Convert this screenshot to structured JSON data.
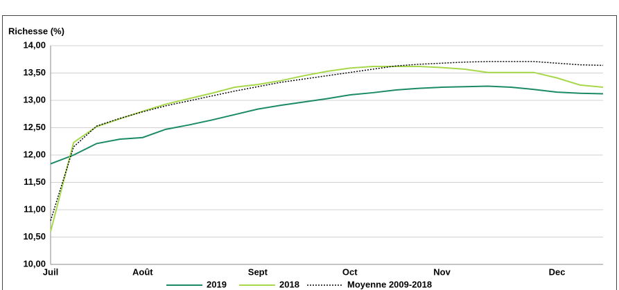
{
  "chart_data": {
    "type": "line",
    "y_label": "Richesse (%)",
    "categories": [
      "Juil",
      null,
      null,
      null,
      "Août",
      null,
      null,
      null,
      null,
      "Sept",
      null,
      null,
      null,
      "Oct",
      null,
      null,
      null,
      "Nov",
      null,
      null,
      null,
      null,
      "Dec",
      null,
      null
    ],
    "ylim": [
      10,
      14
    ],
    "yticks": [
      {
        "value": 10,
        "label": "10,00"
      },
      {
        "value": 10.5,
        "label": "10,50"
      },
      {
        "value": 11,
        "label": "11,00"
      },
      {
        "value": 11.5,
        "label": "11,50"
      },
      {
        "value": 12,
        "label": "12,00"
      },
      {
        "value": 12.5,
        "label": "12,50"
      },
      {
        "value": 13,
        "label": "13,00"
      },
      {
        "value": 13.5,
        "label": "13,50"
      },
      {
        "value": 14,
        "label": "14,00"
      }
    ],
    "grid": true,
    "series": [
      {
        "name": "2019",
        "color": "#1a8a64",
        "dash": "solid",
        "values": [
          11.84,
          12.0,
          12.21,
          12.29,
          12.32,
          12.47,
          12.55,
          12.64,
          12.74,
          12.84,
          12.91,
          12.97,
          13.03,
          13.1,
          13.14,
          13.19,
          13.22,
          13.24,
          13.25,
          13.26,
          13.24,
          13.2,
          13.15,
          13.13,
          13.12
        ]
      },
      {
        "name": "2018",
        "color": "#a6d84a",
        "dash": "solid",
        "values": [
          10.6,
          12.23,
          12.52,
          12.66,
          12.8,
          12.93,
          13.03,
          13.13,
          13.24,
          13.29,
          13.36,
          13.45,
          13.53,
          13.59,
          13.62,
          13.62,
          13.62,
          13.6,
          13.57,
          13.51,
          13.51,
          13.51,
          13.41,
          13.28,
          13.24
        ]
      },
      {
        "name": "Moyenne 2009-2018",
        "color": "#000000",
        "dash": "dotted",
        "values": [
          10.8,
          12.15,
          12.53,
          12.67,
          12.79,
          12.9,
          12.99,
          13.08,
          13.17,
          13.25,
          13.33,
          13.39,
          13.45,
          13.51,
          13.57,
          13.63,
          13.66,
          13.68,
          13.7,
          13.71,
          13.71,
          13.71,
          13.68,
          13.65,
          13.64
        ]
      }
    ]
  }
}
